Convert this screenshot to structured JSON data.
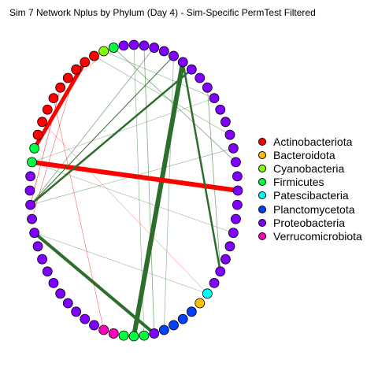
{
  "title": "Sim 7 Network Nplus by Phylum (Day 4) - Sim-Specific PermTest Filtered",
  "legend": [
    {
      "label": "Actinobacteriota",
      "color": "#ff0000"
    },
    {
      "label": "Bacteroidota",
      "color": "#ffbf00"
    },
    {
      "label": "Cyanobacteria",
      "color": "#80ff00"
    },
    {
      "label": "Firmicutes",
      "color": "#00ff40"
    },
    {
      "label": "Patescibacteria",
      "color": "#00ffff"
    },
    {
      "label": "Planctomycetota",
      "color": "#0040ff"
    },
    {
      "label": "Proteobacteria",
      "color": "#8000ff"
    },
    {
      "label": "Verrucomicrobiota",
      "color": "#ff00bf"
    }
  ],
  "edge_colors": {
    "positive": "#2d6e2d",
    "negative": "#ff0000"
  }
}
